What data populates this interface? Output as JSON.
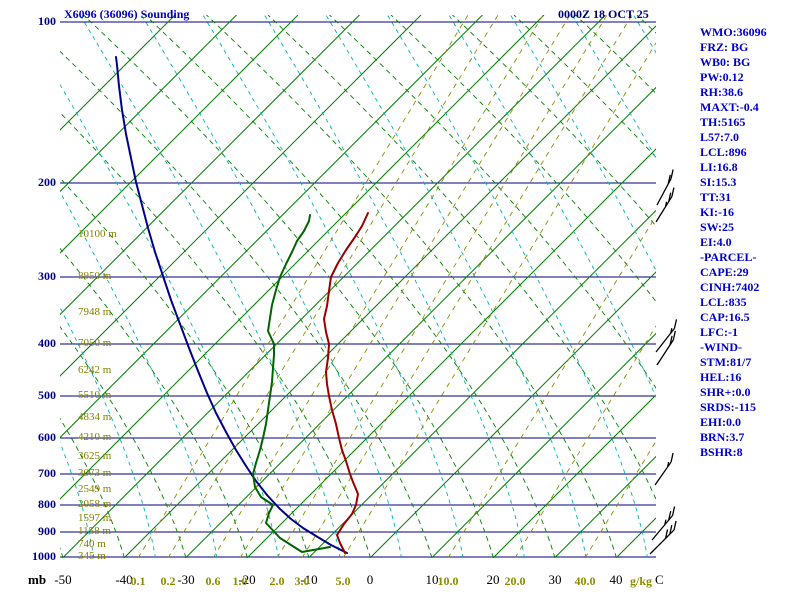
{
  "header": {
    "title": "X6096 (36096) Sounding",
    "datetime": "0000Z 18 OCT 25"
  },
  "stats_panel": {
    "lines": [
      "WMO:36096",
      "FRZ: BG",
      "WB0: BG",
      "PW:0.12",
      "RH:38.6",
      "MAXT:-0.4",
      "TH:5165",
      "L57:7.0",
      "LCL:896",
      "LI:16.8",
      "SI:15.3",
      "TT:31",
      "KI:-16",
      "SW:25",
      "EI:4.0",
      "-PARCEL-",
      "CAPE:29",
      "CINH:7402",
      "LCL:835",
      "CAP:16.5",
      "LFC:-1",
      "-WIND-",
      "STM:81/7",
      "HEL:16",
      "SHR+:0.0",
      "SRDS:-115",
      "EHI:0.0",
      "BRN:3.7",
      "BSHR:8"
    ]
  },
  "axes": {
    "pressure": {
      "unit": "mb",
      "ticks": [
        {
          "label": "100",
          "y": 22
        },
        {
          "label": "200",
          "y": 183
        },
        {
          "label": "300",
          "y": 277
        },
        {
          "label": "400",
          "y": 344
        },
        {
          "label": "500",
          "y": 396
        },
        {
          "label": "600",
          "y": 438
        },
        {
          "label": "700",
          "y": 474
        },
        {
          "label": "800",
          "y": 505
        },
        {
          "label": "900",
          "y": 532
        },
        {
          "label": "1000",
          "y": 557
        }
      ]
    },
    "temperature": {
      "unit": "C",
      "ticks": [
        {
          "label": "-50",
          "x": 63
        },
        {
          "label": "-40",
          "x": 124
        },
        {
          "label": "-30",
          "x": 186
        },
        {
          "label": "-20",
          "x": 247
        },
        {
          "label": "-10",
          "x": 309
        },
        {
          "label": "0",
          "x": 370
        },
        {
          "label": "10",
          "x": 432
        },
        {
          "label": "20",
          "x": 493
        },
        {
          "label": "30",
          "x": 555
        },
        {
          "label": "40",
          "x": 616
        }
      ]
    },
    "mixing_ratio": {
      "unit": "g/kg",
      "ticks": [
        {
          "label": "0.1",
          "x": 138
        },
        {
          "label": "0.2",
          "x": 168
        },
        {
          "label": "0.6",
          "x": 213
        },
        {
          "label": "1.0",
          "x": 240
        },
        {
          "label": "2.0",
          "x": 277
        },
        {
          "label": "3.0",
          "x": 302
        },
        {
          "label": "5.0",
          "x": 343
        },
        {
          "label": "10.0",
          "x": 448
        },
        {
          "label": "20.0",
          "x": 515
        },
        {
          "label": "40.0",
          "x": 585
        }
      ]
    },
    "heights": [
      {
        "label": "10100 m",
        "y": 235
      },
      {
        "label": "8950 m",
        "y": 277
      },
      {
        "label": "7948 m",
        "y": 313
      },
      {
        "label": "7050 m",
        "y": 344
      },
      {
        "label": "6242 m",
        "y": 371
      },
      {
        "label": "5510 m",
        "y": 396
      },
      {
        "label": "4834 m",
        "y": 418
      },
      {
        "label": "4210 m",
        "y": 438
      },
      {
        "label": "3625 m",
        "y": 457
      },
      {
        "label": "3073 m",
        "y": 474
      },
      {
        "label": "2549 m",
        "y": 490
      },
      {
        "label": "2058 m",
        "y": 505
      },
      {
        "label": "1597 m",
        "y": 519
      },
      {
        "label": "1158 m",
        "y": 532
      },
      {
        "label": "740 m",
        "y": 545
      },
      {
        "label": "345 m",
        "y": 557
      }
    ]
  },
  "chart_data": {
    "type": "skewt-log-p-sounding",
    "station": "X6096 (36096)",
    "valid_time": "0000Z 18 OCT 25",
    "pressure_levels_mb": [
      100,
      200,
      300,
      400,
      500,
      600,
      700,
      800,
      900,
      1000
    ],
    "temperature_axis_c": [
      -50,
      -40,
      -30,
      -20,
      -10,
      0,
      10,
      20,
      30,
      40
    ],
    "mixing_ratio_lines_g_per_kg": [
      0.1,
      0.2,
      0.6,
      1.0,
      2.0,
      3.0,
      5.0,
      10.0,
      20.0,
      40.0
    ],
    "height_labels_m": [
      10100,
      8950,
      7948,
      7050,
      6242,
      5510,
      4834,
      4210,
      3625,
      3073,
      2549,
      2058,
      1597,
      1158,
      740,
      345
    ],
    "series": [
      {
        "name": "parcel-trace",
        "color_key": "parcel",
        "points": [
          [
            347,
            553
          ],
          [
            331,
            545
          ],
          [
            316,
            536
          ],
          [
            303,
            528
          ],
          [
            291,
            519
          ],
          [
            279,
            508
          ],
          [
            267,
            495
          ],
          [
            256,
            481
          ],
          [
            246,
            466
          ],
          [
            236,
            450
          ],
          [
            226,
            432
          ],
          [
            216,
            413
          ],
          [
            207,
            393
          ],
          [
            198,
            371
          ],
          [
            189,
            348
          ],
          [
            180,
            324
          ],
          [
            171,
            300
          ],
          [
            163,
            276
          ],
          [
            155,
            252
          ],
          [
            148,
            228
          ],
          [
            142,
            205
          ],
          [
            136,
            182
          ],
          [
            131,
            158
          ],
          [
            126,
            134
          ],
          [
            122,
            110
          ],
          [
            119,
            86
          ],
          [
            117,
            65
          ],
          [
            116,
            57
          ]
        ]
      },
      {
        "name": "dewpoint",
        "color_key": "dewpoint",
        "points": [
          [
            330,
            547
          ],
          [
            302,
            552
          ],
          [
            280,
            538
          ],
          [
            266,
            523
          ],
          [
            269,
            513
          ],
          [
            273,
            505
          ],
          [
            261,
            497
          ],
          [
            255,
            487
          ],
          [
            253,
            474
          ],
          [
            256,
            463
          ],
          [
            260,
            450
          ],
          [
            263,
            438
          ],
          [
            266,
            424
          ],
          [
            268,
            410
          ],
          [
            270,
            396
          ],
          [
            272,
            382
          ],
          [
            273,
            368
          ],
          [
            274,
            355
          ],
          [
            274,
            344
          ],
          [
            268,
            331
          ],
          [
            270,
            318
          ],
          [
            272,
            305
          ],
          [
            276,
            290
          ],
          [
            280,
            277
          ],
          [
            286,
            264
          ],
          [
            292,
            252
          ],
          [
            297,
            241
          ],
          [
            304,
            231
          ],
          [
            309,
            221
          ],
          [
            310,
            215
          ]
        ]
      },
      {
        "name": "temperature",
        "color_key": "temperature",
        "points": [
          [
            345,
            553
          ],
          [
            340,
            543
          ],
          [
            337,
            535
          ],
          [
            344,
            524
          ],
          [
            352,
            514
          ],
          [
            356,
            505
          ],
          [
            358,
            494
          ],
          [
            353,
            482
          ],
          [
            350,
            474
          ],
          [
            346,
            461
          ],
          [
            342,
            450
          ],
          [
            339,
            438
          ],
          [
            336,
            424
          ],
          [
            332,
            410
          ],
          [
            329,
            396
          ],
          [
            327,
            384
          ],
          [
            326,
            372
          ],
          [
            328,
            358
          ],
          [
            329,
            344
          ],
          [
            326,
            332
          ],
          [
            324,
            319
          ],
          [
            327,
            306
          ],
          [
            329,
            291
          ],
          [
            331,
            277
          ],
          [
            338,
            263
          ],
          [
            346,
            250
          ],
          [
            355,
            237
          ],
          [
            362,
            226
          ],
          [
            368,
            213
          ]
        ]
      }
    ],
    "wind_barbs": [
      {
        "x": 656,
        "y": 222,
        "len": 30,
        "angle": 58,
        "full": 2,
        "half": 1
      },
      {
        "x": 657,
        "y": 205,
        "len": 30,
        "angle": 62,
        "full": 2,
        "half": 0
      },
      {
        "x": 656,
        "y": 352,
        "len": 30,
        "angle": 52,
        "full": 1,
        "half": 1
      },
      {
        "x": 657,
        "y": 365,
        "len": 30,
        "angle": 57,
        "full": 2,
        "half": 0
      },
      {
        "x": 655,
        "y": 485,
        "len": 28,
        "angle": 55,
        "full": 1,
        "half": 1
      },
      {
        "x": 652,
        "y": 540,
        "len": 32,
        "angle": 50,
        "full": 2,
        "half": 1
      },
      {
        "x": 650,
        "y": 554,
        "len": 34,
        "angle": 45,
        "full": 3,
        "half": 0
      }
    ]
  },
  "colors": {
    "temperature": "#990000",
    "dewpoint": "#006400",
    "parcel": "#00008b",
    "isobar": "#000080",
    "isotherm": "#008000",
    "dry_adiabat": "#008000",
    "moist_adiabat": "#00b2b2",
    "mixing_ratio": "#8b8b00",
    "stats_text": "#0000cc",
    "title_text": "#0000bb",
    "axis_pressure_text": "#000080",
    "height_text": "#808000"
  }
}
